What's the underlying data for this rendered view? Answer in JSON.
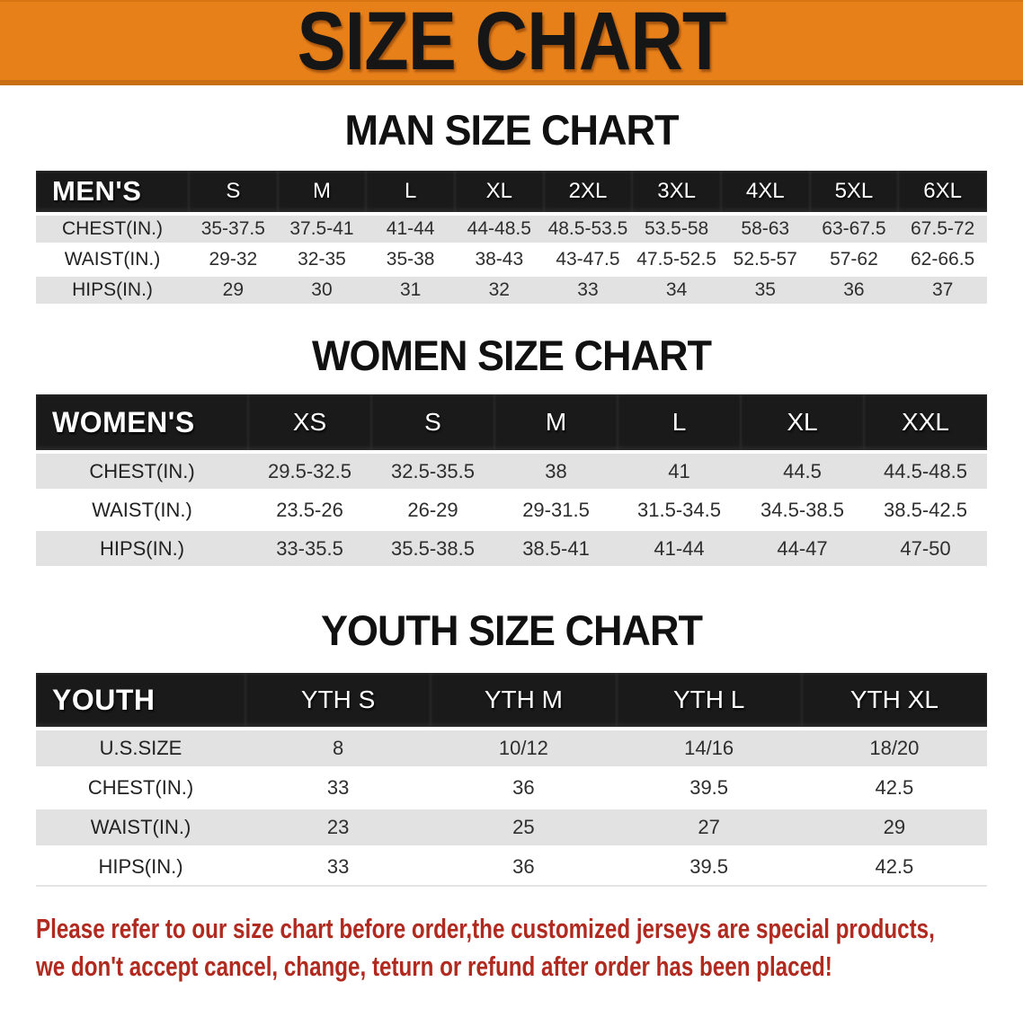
{
  "banner": {
    "title": "SIZE CHART"
  },
  "colors": {
    "banner_bg": "#E8801A",
    "banner_border": "#C96E12",
    "header_band": "#1A1A1A",
    "row_stripe": "#E2E2E2",
    "value_text": "#2E2E2E",
    "disclaimer_red": "#B02A1F"
  },
  "sections": [
    {
      "heading": "MAN SIZE CHART",
      "table": {
        "label": "MEN'S",
        "columns": [
          "S",
          "M",
          "L",
          "XL",
          "2XL",
          "3XL",
          "4XL",
          "5XL",
          "6XL"
        ],
        "rows": [
          {
            "label": "CHEST(IN.)",
            "values": [
              "35-37.5",
              "37.5-41",
              "41-44",
              "44-48.5",
              "48.5-53.5",
              "53.5-58",
              "58-63",
              "63-67.5",
              "67.5-72"
            ]
          },
          {
            "label": "WAIST(IN.)",
            "values": [
              "29-32",
              "32-35",
              "35-38",
              "38-43",
              "43-47.5",
              "47.5-52.5",
              "52.5-57",
              "57-62",
              "62-66.5"
            ]
          },
          {
            "label": "HIPS(IN.)",
            "values": [
              "29",
              "30",
              "31",
              "32",
              "33",
              "34",
              "35",
              "36",
              "37"
            ]
          }
        ]
      }
    },
    {
      "heading": "WOMEN SIZE CHART",
      "table": {
        "label": "WOMEN'S",
        "columns": [
          "XS",
          "S",
          "M",
          "L",
          "XL",
          "XXL"
        ],
        "rows": [
          {
            "label": "CHEST(IN.)",
            "values": [
              "29.5-32.5",
              "32.5-35.5",
              "38",
              "41",
              "44.5",
              "44.5-48.5"
            ]
          },
          {
            "label": "WAIST(IN.)",
            "values": [
              "23.5-26",
              "26-29",
              "29-31.5",
              "31.5-34.5",
              "34.5-38.5",
              "38.5-42.5"
            ]
          },
          {
            "label": "HIPS(IN.)",
            "values": [
              "33-35.5",
              "35.5-38.5",
              "38.5-41",
              "41-44",
              "44-47",
              "47-50"
            ]
          }
        ]
      }
    },
    {
      "heading": "YOUTH SIZE CHART",
      "table": {
        "label": "YOUTH",
        "columns": [
          "YTH S",
          "YTH M",
          "YTH L",
          "YTH XL"
        ],
        "rows": [
          {
            "label": "U.S.SIZE",
            "values": [
              "8",
              "10/12",
              "14/16",
              "18/20"
            ]
          },
          {
            "label": "CHEST(IN.)",
            "values": [
              "33",
              "36",
              "39.5",
              "42.5"
            ]
          },
          {
            "label": "WAIST(IN.)",
            "values": [
              "23",
              "25",
              "27",
              "29"
            ]
          },
          {
            "label": "HIPS(IN.)",
            "values": [
              "33",
              "36",
              "39.5",
              "42.5"
            ]
          }
        ]
      }
    }
  ],
  "footer": {
    "line1": "Please refer to our size chart before order,the customized jerseys are special products,",
    "line2": "we don't accept cancel, change, teturn or refund after order has been placed!"
  }
}
